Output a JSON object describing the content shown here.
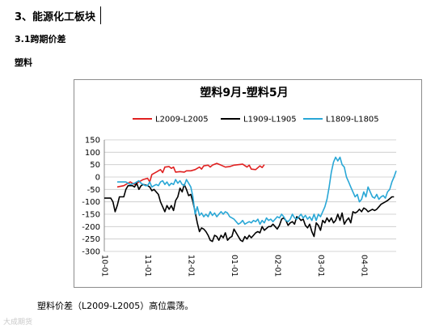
{
  "document": {
    "section_heading": "3、能源化工板块",
    "subsection_heading": "3.1跨期价差",
    "product_label": "塑料",
    "caption": "塑料价差（L2009-L2005）高位震荡。",
    "watermark": "大成期货"
  },
  "chart_data": {
    "type": "line",
    "title": "塑料9月-塑料5月",
    "legend_position": "top",
    "grid": true,
    "ylim": [
      -300,
      150
    ],
    "yticks": [
      150,
      100,
      50,
      0,
      -50,
      -100,
      -150,
      -200,
      -250,
      -300
    ],
    "x_ticks": [
      "10-01",
      "11-01",
      "12-01",
      "01-01",
      "02-01",
      "03-01",
      "04-01"
    ],
    "x_range": [
      0,
      135
    ],
    "x_tick_positions": [
      0,
      20,
      40,
      60,
      80,
      100,
      120
    ],
    "series": [
      {
        "name": "L2009-L2005",
        "color": "#e02020",
        "points": [
          [
            6,
            -40
          ],
          [
            9,
            -35
          ],
          [
            12,
            -20
          ],
          [
            14,
            -30
          ],
          [
            16,
            -20
          ],
          [
            18,
            -10
          ],
          [
            20,
            -5
          ],
          [
            21,
            -20
          ],
          [
            22,
            10
          ],
          [
            24,
            20
          ],
          [
            26,
            30
          ],
          [
            27,
            18
          ],
          [
            28,
            40
          ],
          [
            30,
            42
          ],
          [
            31,
            35
          ],
          [
            32,
            40
          ],
          [
            33,
            20
          ],
          [
            35,
            22
          ],
          [
            37,
            20
          ],
          [
            38,
            25
          ],
          [
            40,
            25
          ],
          [
            42,
            30
          ],
          [
            44,
            40
          ],
          [
            45,
            32
          ],
          [
            46,
            45
          ],
          [
            48,
            48
          ],
          [
            49,
            40
          ],
          [
            50,
            48
          ],
          [
            52,
            55
          ],
          [
            54,
            48
          ],
          [
            56,
            40
          ],
          [
            58,
            42
          ],
          [
            60,
            48
          ],
          [
            62,
            50
          ],
          [
            64,
            52
          ],
          [
            66,
            40
          ],
          [
            67,
            48
          ],
          [
            68,
            32
          ],
          [
            70,
            30
          ],
          [
            72,
            45
          ],
          [
            73,
            38
          ],
          [
            74,
            50
          ]
        ]
      },
      {
        "name": "L1909-L1905",
        "color": "#000000",
        "points": [
          [
            0,
            -85
          ],
          [
            3,
            -85
          ],
          [
            4,
            -100
          ],
          [
            5,
            -140
          ],
          [
            6,
            -115
          ],
          [
            7,
            -80
          ],
          [
            9,
            -80
          ],
          [
            10,
            -50
          ],
          [
            11,
            -35
          ],
          [
            13,
            -35
          ],
          [
            14,
            -40
          ],
          [
            15,
            -25
          ],
          [
            16,
            -50
          ],
          [
            17,
            -35
          ],
          [
            18,
            -30
          ],
          [
            20,
            -35
          ],
          [
            21,
            -40
          ],
          [
            22,
            -55
          ],
          [
            23,
            -50
          ],
          [
            25,
            -70
          ],
          [
            26,
            -100
          ],
          [
            27,
            -120
          ],
          [
            28,
            -140
          ],
          [
            29,
            -115
          ],
          [
            30,
            -130
          ],
          [
            31,
            -115
          ],
          [
            32,
            -135
          ],
          [
            33,
            -95
          ],
          [
            34,
            -80
          ],
          [
            35,
            -45
          ],
          [
            36,
            -60
          ],
          [
            37,
            -30
          ],
          [
            38,
            -50
          ],
          [
            39,
            -75
          ],
          [
            40,
            -70
          ],
          [
            41,
            -100
          ],
          [
            42,
            -140
          ],
          [
            43,
            -185
          ],
          [
            44,
            -220
          ],
          [
            45,
            -205
          ],
          [
            46,
            -210
          ],
          [
            47,
            -220
          ],
          [
            48,
            -235
          ],
          [
            49,
            -255
          ],
          [
            50,
            -260
          ],
          [
            51,
            -235
          ],
          [
            52,
            -240
          ],
          [
            53,
            -255
          ],
          [
            54,
            -235
          ],
          [
            55,
            -245
          ],
          [
            56,
            -225
          ],
          [
            57,
            -255
          ],
          [
            58,
            -245
          ],
          [
            59,
            -240
          ],
          [
            60,
            -210
          ],
          [
            61,
            -225
          ],
          [
            62,
            -240
          ],
          [
            63,
            -255
          ],
          [
            64,
            -260
          ],
          [
            65,
            -240
          ],
          [
            66,
            -250
          ],
          [
            67,
            -235
          ],
          [
            68,
            -245
          ],
          [
            69,
            -235
          ],
          [
            70,
            -225
          ],
          [
            71,
            -220
          ],
          [
            72,
            -225
          ],
          [
            73,
            -200
          ],
          [
            74,
            -215
          ],
          [
            76,
            -200
          ],
          [
            77,
            -200
          ],
          [
            78,
            -190
          ],
          [
            79,
            -200
          ],
          [
            80,
            -210
          ],
          [
            81,
            -195
          ],
          [
            82,
            -170
          ],
          [
            83,
            -165
          ],
          [
            84,
            -175
          ],
          [
            85,
            -195
          ],
          [
            86,
            -185
          ],
          [
            87,
            -180
          ],
          [
            88,
            -190
          ],
          [
            89,
            -160
          ],
          [
            90,
            -165
          ],
          [
            91,
            -175
          ],
          [
            92,
            -170
          ],
          [
            93,
            -195
          ],
          [
            94,
            -205
          ],
          [
            95,
            -190
          ],
          [
            96,
            -220
          ],
          [
            97,
            -240
          ],
          [
            98,
            -185
          ],
          [
            99,
            -195
          ],
          [
            100,
            -215
          ],
          [
            101,
            -175
          ],
          [
            102,
            -185
          ],
          [
            103,
            -165
          ],
          [
            104,
            -180
          ],
          [
            105,
            -165
          ],
          [
            106,
            -185
          ],
          [
            107,
            -175
          ],
          [
            108,
            -150
          ],
          [
            109,
            -175
          ],
          [
            110,
            -145
          ],
          [
            111,
            -190
          ],
          [
            112,
            -175
          ],
          [
            113,
            -165
          ],
          [
            114,
            -185
          ],
          [
            115,
            -140
          ],
          [
            116,
            -145
          ],
          [
            117,
            -140
          ],
          [
            118,
            -130
          ],
          [
            119,
            -140
          ],
          [
            120,
            -125
          ],
          [
            121,
            -130
          ],
          [
            122,
            -140
          ],
          [
            123,
            -135
          ],
          [
            124,
            -130
          ],
          [
            125,
            -135
          ],
          [
            126,
            -130
          ],
          [
            127,
            -120
          ],
          [
            128,
            -110
          ],
          [
            130,
            -100
          ],
          [
            131,
            -95
          ],
          [
            133,
            -80
          ],
          [
            134,
            -80
          ]
        ]
      },
      {
        "name": "L1809-L1805",
        "color": "#29a7d6",
        "points": [
          [
            6,
            -20
          ],
          [
            10,
            -20
          ],
          [
            12,
            -30
          ],
          [
            14,
            -25
          ],
          [
            15,
            -20
          ],
          [
            16,
            -15
          ],
          [
            17,
            -25
          ],
          [
            18,
            -30
          ],
          [
            19,
            -35
          ],
          [
            20,
            -35
          ],
          [
            21,
            -20
          ],
          [
            22,
            -40
          ],
          [
            23,
            -35
          ],
          [
            24,
            -30
          ],
          [
            25,
            -35
          ],
          [
            26,
            -20
          ],
          [
            27,
            -15
          ],
          [
            28,
            -30
          ],
          [
            29,
            -20
          ],
          [
            30,
            -35
          ],
          [
            31,
            -25
          ],
          [
            32,
            -30
          ],
          [
            33,
            -10
          ],
          [
            34,
            -25
          ],
          [
            35,
            -15
          ],
          [
            36,
            -30
          ],
          [
            37,
            -35
          ],
          [
            38,
            -10
          ],
          [
            39,
            -25
          ],
          [
            40,
            -40
          ],
          [
            41,
            -80
          ],
          [
            42,
            -150
          ],
          [
            43,
            -120
          ],
          [
            44,
            -155
          ],
          [
            45,
            -145
          ],
          [
            46,
            -160
          ],
          [
            47,
            -150
          ],
          [
            48,
            -160
          ],
          [
            49,
            -140
          ],
          [
            50,
            -155
          ],
          [
            51,
            -145
          ],
          [
            52,
            -160
          ],
          [
            53,
            -150
          ],
          [
            54,
            -140
          ],
          [
            55,
            -150
          ],
          [
            56,
            -140
          ],
          [
            57,
            -145
          ],
          [
            58,
            -160
          ],
          [
            59,
            -165
          ],
          [
            60,
            -170
          ],
          [
            61,
            -180
          ],
          [
            62,
            -190
          ],
          [
            63,
            -185
          ],
          [
            64,
            -175
          ],
          [
            65,
            -190
          ],
          [
            66,
            -185
          ],
          [
            67,
            -180
          ],
          [
            68,
            -185
          ],
          [
            69,
            -175
          ],
          [
            70,
            -180
          ],
          [
            71,
            -170
          ],
          [
            72,
            -190
          ],
          [
            73,
            -175
          ],
          [
            74,
            -185
          ],
          [
            75,
            -165
          ],
          [
            76,
            -175
          ],
          [
            77,
            -170
          ],
          [
            78,
            -180
          ],
          [
            79,
            -170
          ],
          [
            80,
            -160
          ],
          [
            81,
            -165
          ],
          [
            82,
            -150
          ],
          [
            83,
            -160
          ],
          [
            84,
            -175
          ],
          [
            85,
            -180
          ],
          [
            86,
            -170
          ],
          [
            87,
            -150
          ],
          [
            88,
            -165
          ],
          [
            89,
            -170
          ],
          [
            90,
            -160
          ],
          [
            91,
            -150
          ],
          [
            92,
            -165
          ],
          [
            93,
            -155
          ],
          [
            94,
            -170
          ],
          [
            95,
            -160
          ],
          [
            96,
            -175
          ],
          [
            97,
            -150
          ],
          [
            98,
            -175
          ],
          [
            99,
            -150
          ],
          [
            100,
            -160
          ],
          [
            101,
            -140
          ],
          [
            102,
            -120
          ],
          [
            103,
            -90
          ],
          [
            104,
            -40
          ],
          [
            105,
            20
          ],
          [
            106,
            60
          ],
          [
            107,
            80
          ],
          [
            108,
            65
          ],
          [
            109,
            80
          ],
          [
            110,
            50
          ],
          [
            111,
            40
          ],
          [
            112,
            0
          ],
          [
            113,
            -20
          ],
          [
            114,
            -40
          ],
          [
            115,
            -60
          ],
          [
            116,
            -80
          ],
          [
            117,
            -70
          ],
          [
            118,
            -100
          ],
          [
            119,
            -90
          ],
          [
            120,
            -60
          ],
          [
            121,
            -80
          ],
          [
            122,
            -40
          ],
          [
            123,
            -60
          ],
          [
            124,
            -80
          ],
          [
            125,
            -85
          ],
          [
            126,
            -70
          ],
          [
            127,
            -90
          ],
          [
            128,
            -80
          ],
          [
            129,
            -75
          ],
          [
            130,
            -85
          ],
          [
            131,
            -60
          ],
          [
            132,
            -50
          ],
          [
            133,
            -20
          ],
          [
            134,
            0
          ],
          [
            135,
            25
          ]
        ]
      }
    ]
  }
}
